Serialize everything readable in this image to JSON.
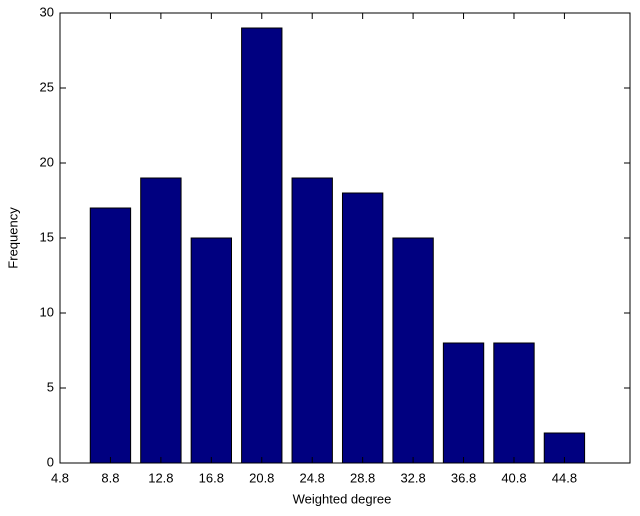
{
  "chart_data": {
    "type": "bar",
    "xlabel": "Weighted degree",
    "ylabel": "Frequency",
    "x": [
      8.8,
      12.8,
      16.8,
      20.8,
      24.8,
      28.8,
      32.8,
      36.8,
      40.8,
      44.8
    ],
    "values": [
      17,
      19,
      15,
      29,
      19,
      18,
      15,
      8,
      8,
      2
    ],
    "color": "#000080",
    "xlim": [
      4.8,
      50
    ],
    "xticks": [
      4.8,
      8.8,
      12.8,
      16.8,
      20.8,
      24.8,
      28.8,
      32.8,
      36.8,
      40.8,
      44.8
    ],
    "ylim": [
      0,
      30
    ],
    "yticks": [
      0,
      5,
      10,
      15,
      20,
      25,
      30
    ],
    "grid": false
  }
}
